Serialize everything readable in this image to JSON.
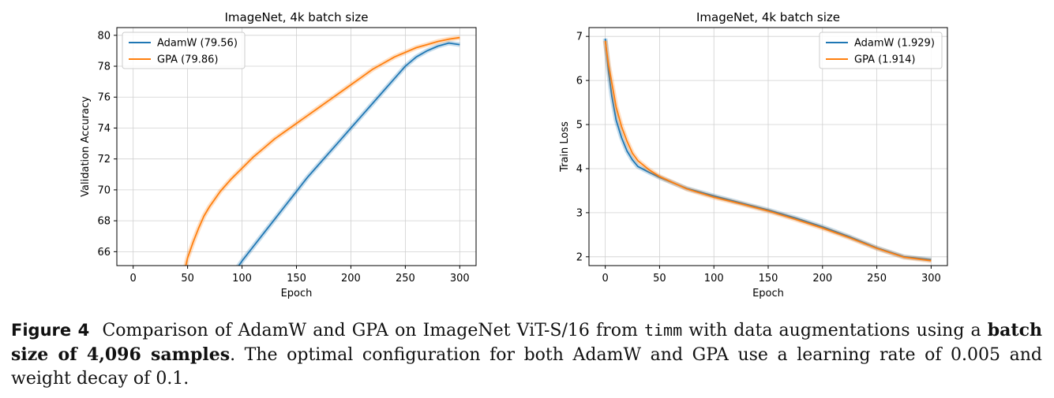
{
  "chart_data": [
    {
      "type": "line",
      "title": "ImageNet, 4k batch size",
      "xlabel": "Epoch",
      "ylabel": "Validation Accuracy",
      "xlim": [
        -15,
        315
      ],
      "ylim": [
        65.1,
        80.5
      ],
      "xticks": [
        0,
        50,
        100,
        150,
        200,
        250,
        300
      ],
      "yticks": [
        66,
        68,
        70,
        72,
        74,
        76,
        78,
        80
      ],
      "grid": true,
      "legend_position": "top-left",
      "series": [
        {
          "name": "AdamW (79.56)",
          "color": "#1f77b4",
          "x": [
            95,
            100,
            110,
            120,
            130,
            140,
            150,
            160,
            170,
            180,
            190,
            200,
            210,
            220,
            230,
            240,
            250,
            260,
            270,
            280,
            290,
            300
          ],
          "y": [
            64.9,
            65.4,
            66.3,
            67.2,
            68.1,
            69.0,
            69.9,
            70.8,
            71.6,
            72.4,
            73.2,
            74.0,
            74.8,
            75.6,
            76.4,
            77.2,
            78.0,
            78.6,
            79.0,
            79.3,
            79.5,
            79.4
          ]
        },
        {
          "name": "GPA (79.86)",
          "color": "#ff7f0e",
          "x": [
            48,
            50,
            55,
            60,
            65,
            70,
            80,
            90,
            100,
            110,
            120,
            130,
            140,
            150,
            160,
            170,
            180,
            190,
            200,
            210,
            220,
            230,
            240,
            250,
            260,
            270,
            280,
            290,
            300
          ],
          "y": [
            65.0,
            65.6,
            66.6,
            67.5,
            68.3,
            68.9,
            69.9,
            70.7,
            71.4,
            72.1,
            72.7,
            73.3,
            73.8,
            74.3,
            74.8,
            75.3,
            75.8,
            76.3,
            76.8,
            77.3,
            77.8,
            78.2,
            78.6,
            78.9,
            79.2,
            79.4,
            79.6,
            79.75,
            79.85
          ]
        }
      ]
    },
    {
      "type": "line",
      "title": "ImageNet, 4k batch size",
      "xlabel": "Epoch",
      "ylabel": "Train Loss",
      "xlim": [
        -15,
        315
      ],
      "ylim": [
        1.8,
        7.2
      ],
      "xticks": [
        0,
        50,
        100,
        150,
        200,
        250,
        300
      ],
      "yticks": [
        2,
        3,
        4,
        5,
        6,
        7
      ],
      "grid": true,
      "legend_position": "top-right",
      "series": [
        {
          "name": "AdamW (1.929)",
          "color": "#1f77b4",
          "x": [
            0,
            3,
            6,
            10,
            15,
            20,
            25,
            30,
            40,
            50,
            75,
            100,
            125,
            150,
            175,
            200,
            225,
            250,
            275,
            300
          ],
          "y": [
            6.95,
            6.2,
            5.65,
            5.1,
            4.7,
            4.4,
            4.2,
            4.05,
            3.92,
            3.8,
            3.55,
            3.38,
            3.22,
            3.06,
            2.88,
            2.68,
            2.45,
            2.2,
            2.0,
            1.93
          ]
        },
        {
          "name": "GPA (1.914)",
          "color": "#ff7f0e",
          "x": [
            0,
            3,
            6,
            10,
            15,
            20,
            25,
            30,
            40,
            50,
            75,
            100,
            125,
            150,
            175,
            200,
            225,
            250,
            275,
            300
          ],
          "y": [
            6.9,
            6.35,
            5.95,
            5.4,
            4.95,
            4.62,
            4.35,
            4.18,
            3.98,
            3.82,
            3.54,
            3.35,
            3.2,
            3.04,
            2.85,
            2.65,
            2.43,
            2.19,
            1.99,
            1.91
          ]
        }
      ]
    }
  ],
  "caption": {
    "label": "Figure 4",
    "part1": "Comparison of AdamW and GPA on ImageNet ViT-S/16 from",
    "code": "timm",
    "part2": "with data augmentations using a",
    "bold": "batch size of 4,096 samples",
    "part3": ". The optimal configuration for both AdamW and GPA use a learning rate of 0.005 and weight decay of 0.1."
  }
}
